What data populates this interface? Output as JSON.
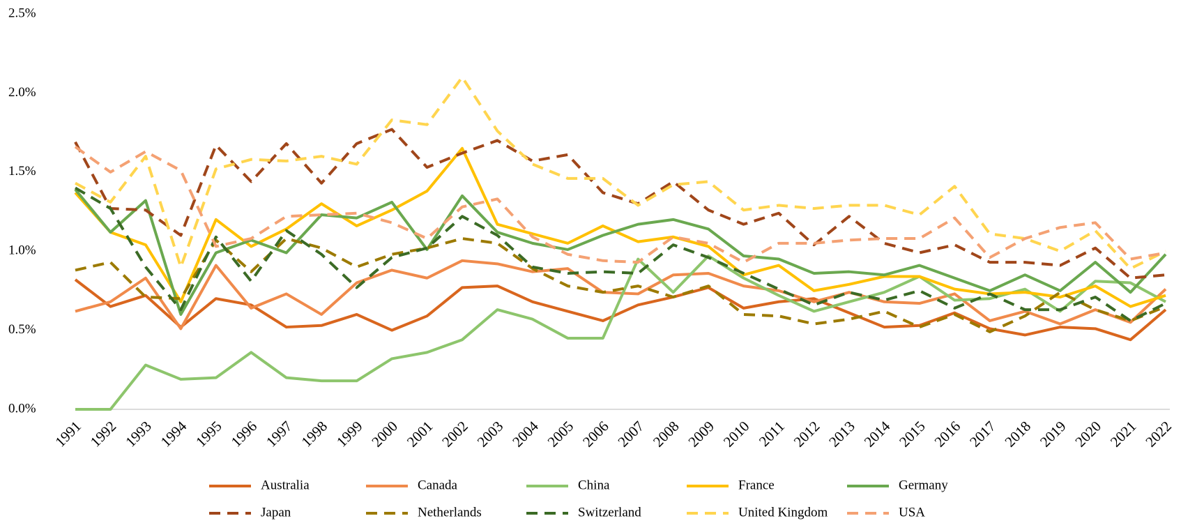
{
  "chart_data": {
    "type": "line",
    "categories": [
      "1991",
      "1992",
      "1993",
      "1994",
      "1995",
      "1996",
      "1997",
      "1998",
      "1999",
      "2000",
      "2001",
      "2002",
      "2003",
      "2004",
      "2005",
      "2006",
      "2007",
      "2008",
      "2009",
      "2010",
      "2011",
      "2012",
      "2013",
      "2014",
      "2015",
      "2016",
      "2017",
      "2018",
      "2019",
      "2020",
      "2021",
      "2022"
    ],
    "ylim": [
      0,
      2.5
    ],
    "yticks": [
      {
        "value": 0,
        "label": "0.0%"
      },
      {
        "value": 0.5,
        "label": "0.5%"
      },
      {
        "value": 1,
        "label": "1.0%"
      },
      {
        "value": 1.5,
        "label": "1.5%"
      },
      {
        "value": 2,
        "label": "2.0%"
      },
      {
        "value": 2.5,
        "label": "2.5%"
      }
    ],
    "grid": false,
    "legend": "bottom",
    "series": [
      {
        "name": "Australia",
        "color": "#d9661e",
        "dashed": false,
        "values": [
          0.82,
          0.65,
          0.72,
          0.52,
          0.7,
          0.66,
          0.52,
          0.53,
          0.6,
          0.5,
          0.59,
          0.77,
          0.78,
          0.68,
          0.62,
          0.56,
          0.66,
          0.71,
          0.77,
          0.64,
          0.68,
          0.7,
          0.61,
          0.52,
          0.53,
          0.61,
          0.51,
          0.47,
          0.52,
          0.51,
          0.44,
          0.63
        ]
      },
      {
        "name": "Canada",
        "color": "#f08a4b",
        "dashed": false,
        "values": [
          0.62,
          0.68,
          0.83,
          0.51,
          0.91,
          0.64,
          0.73,
          0.6,
          0.8,
          0.88,
          0.83,
          0.94,
          0.92,
          0.87,
          0.89,
          0.74,
          0.73,
          0.85,
          0.86,
          0.78,
          0.75,
          0.68,
          0.74,
          0.68,
          0.67,
          0.73,
          0.56,
          0.62,
          0.54,
          0.63,
          0.55,
          0.76
        ]
      },
      {
        "name": "China",
        "color": "#8dc56c",
        "dashed": false,
        "values": [
          0,
          0,
          0.28,
          0.19,
          0.2,
          0.36,
          0.2,
          0.18,
          0.18,
          0.32,
          0.36,
          0.44,
          0.63,
          0.57,
          0.45,
          0.45,
          0.95,
          0.74,
          0.97,
          0.83,
          0.72,
          0.62,
          0.68,
          0.74,
          0.84,
          0.69,
          0.7,
          0.76,
          0.62,
          0.81,
          0.8,
          0.68
        ]
      },
      {
        "name": "France",
        "color": "#ffc000",
        "dashed": false,
        "values": [
          1.37,
          1.12,
          1.04,
          0.68,
          1.2,
          1.03,
          1.14,
          1.3,
          1.16,
          1.26,
          1.38,
          1.65,
          1.17,
          1.11,
          1.05,
          1.16,
          1.06,
          1.09,
          1.03,
          0.85,
          0.91,
          0.75,
          0.79,
          0.84,
          0.84,
          0.76,
          0.73,
          0.74,
          0.71,
          0.78,
          0.65,
          0.72
        ]
      },
      {
        "name": "Germany",
        "color": "#6aa84f",
        "dashed": false,
        "values": [
          1.39,
          1.12,
          1.32,
          0.6,
          0.99,
          1.07,
          0.99,
          1.23,
          1.21,
          1.31,
          1.01,
          1.35,
          1.12,
          1.05,
          1.01,
          1.1,
          1.17,
          1.2,
          1.14,
          0.97,
          0.95,
          0.86,
          0.87,
          0.85,
          0.91,
          0.83,
          0.75,
          0.85,
          0.75,
          0.93,
          0.74,
          0.98
        ]
      },
      {
        "name": "Japan",
        "color": "#a0461a",
        "dashed": true,
        "values": [
          1.69,
          1.27,
          1.26,
          1.1,
          1.67,
          1.44,
          1.68,
          1.43,
          1.68,
          1.77,
          1.53,
          1.62,
          1.7,
          1.57,
          1.61,
          1.37,
          1.3,
          1.44,
          1.26,
          1.17,
          1.24,
          1.04,
          1.22,
          1.05,
          0.99,
          1.04,
          0.93,
          0.93,
          0.91,
          1.02,
          0.83,
          0.85
        ]
      },
      {
        "name": "Netherlands",
        "color": "#9c7a00",
        "dashed": true,
        "values": [
          0.88,
          0.93,
          0.71,
          0.7,
          1.07,
          0.87,
          1.08,
          1.02,
          0.9,
          0.98,
          1.02,
          1.08,
          1.05,
          0.89,
          0.78,
          0.74,
          0.78,
          0.71,
          0.78,
          0.6,
          0.59,
          0.54,
          0.57,
          0.62,
          0.52,
          0.6,
          0.49,
          0.59,
          0.74,
          0.63,
          0.56,
          0.65
        ]
      },
      {
        "name": "Switzerland",
        "color": "#3b6b25",
        "dashed": true,
        "values": [
          1.4,
          1.27,
          0.9,
          0.63,
          1.09,
          0.81,
          1.13,
          0.98,
          0.77,
          0.96,
          1.02,
          1.22,
          1.1,
          0.9,
          0.86,
          0.87,
          0.86,
          1.04,
          0.96,
          0.86,
          0.76,
          0.66,
          0.74,
          0.69,
          0.75,
          0.64,
          0.73,
          0.63,
          0.63,
          0.71,
          0.56,
          0.67
        ]
      },
      {
        "name": "United Kingdom",
        "color": "#ffd54f",
        "dashed": true,
        "values": [
          1.43,
          1.31,
          1.6,
          0.9,
          1.52,
          1.58,
          1.57,
          1.6,
          1.55,
          1.83,
          1.8,
          2.1,
          1.76,
          1.55,
          1.46,
          1.46,
          1.29,
          1.42,
          1.44,
          1.26,
          1.29,
          1.27,
          1.29,
          1.29,
          1.23,
          1.41,
          1.11,
          1.08,
          1.0,
          1.13,
          0.89,
          1.0
        ]
      },
      {
        "name": "USA",
        "color": "#f4a173",
        "dashed": true,
        "values": [
          1.66,
          1.5,
          1.63,
          1.51,
          1.03,
          1.08,
          1.22,
          1.23,
          1.24,
          1.18,
          1.08,
          1.28,
          1.33,
          1.09,
          0.98,
          0.94,
          0.93,
          1.09,
          1.05,
          0.93,
          1.05,
          1.05,
          1.07,
          1.08,
          1.08,
          1.21,
          0.96,
          1.08,
          1.15,
          1.18,
          0.95,
          0.99
        ]
      }
    ]
  }
}
